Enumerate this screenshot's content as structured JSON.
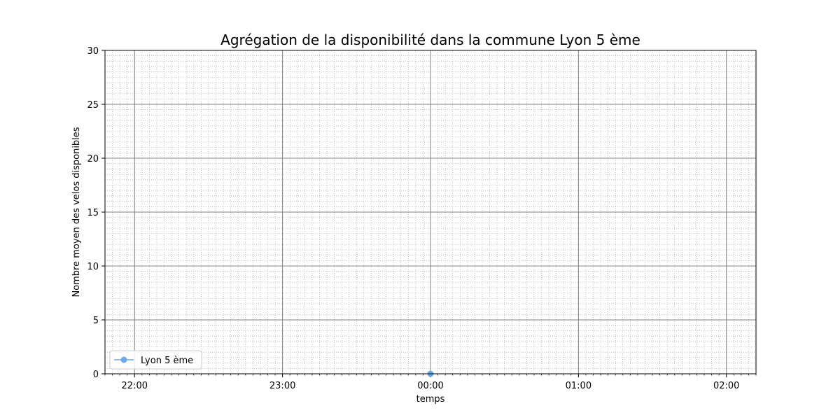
{
  "chart_data": {
    "type": "line",
    "title": "Agrégation de la disponibilité dans la commune Lyon 5 ème",
    "xlabel": "temps",
    "ylabel": "Nombre moyen des velos disponibles",
    "x_ticks": [
      "22:00",
      "23:00",
      "00:00",
      "01:00",
      "02:00"
    ],
    "xlim": [
      "21:48",
      "02:12"
    ],
    "ylim": [
      0,
      30
    ],
    "y_ticks": [
      0,
      5,
      10,
      15,
      20,
      25,
      30
    ],
    "grid": true,
    "minor_grid": true,
    "legend_position": "lower-left",
    "series": [
      {
        "name": "Lyon 5 ème",
        "color": "#6fa8e6",
        "marker": "circle",
        "points": [
          {
            "x": "00:00",
            "y": 0
          }
        ]
      }
    ]
  }
}
